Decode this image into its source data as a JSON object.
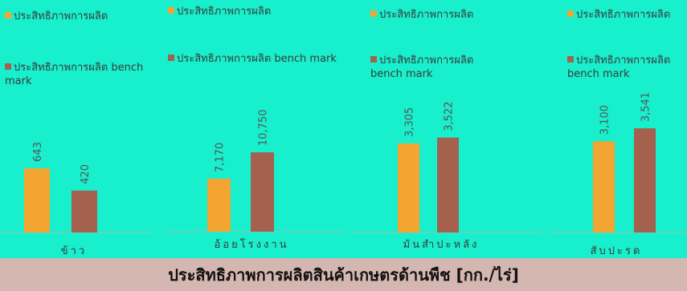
{
  "colors": {
    "background": "#18efcc",
    "footer": "#d5b7b1",
    "production": "#f2a530",
    "benchmark": "#a4614e",
    "text": "#3a3a3a",
    "value_label": "#555555"
  },
  "footer": {
    "title": "ประสิทธิภาพการผลิตสินค้าเกษตรด้านพืช [กก./ไร่]"
  },
  "chart_data": [
    {
      "type": "bar",
      "categories": [
        "ข้าว"
      ],
      "series": [
        {
          "name": "ประสิทธิภาพการผลิต",
          "values": [
            643
          ]
        },
        {
          "name": "ประสิทธิภาพการผลิต bench mark",
          "values": [
            420
          ]
        }
      ],
      "value_labels": [
        "643",
        "420"
      ],
      "legend_position": "top"
    },
    {
      "type": "bar",
      "categories": [
        "อ้อยโรงงาน"
      ],
      "series": [
        {
          "name": "ประสิทธิภาพการผลิต",
          "values": [
            7170
          ]
        },
        {
          "name": "ประสิทธิภาพการผลิต bench mark",
          "values": [
            10750
          ]
        }
      ],
      "value_labels": [
        "7,170",
        "10,750"
      ],
      "legend_position": "top"
    },
    {
      "type": "bar",
      "categories": [
        "มันสำปะหลัง"
      ],
      "series": [
        {
          "name": "ประสิทธิภาพการผลิต",
          "values": [
            3305
          ]
        },
        {
          "name": "ประสิทธิภาพการผลิต bench mark",
          "values": [
            3522
          ]
        }
      ],
      "value_labels": [
        "3,305",
        "3,522"
      ],
      "legend_position": "top"
    },
    {
      "type": "bar",
      "categories": [
        "สับปะรด"
      ],
      "series": [
        {
          "name": "ประสิทธิภาพการผลิต",
          "values": [
            3100
          ]
        },
        {
          "name": "ประสิทธิภาพการผลิต bench mark",
          "values": [
            3541
          ]
        }
      ],
      "value_labels": [
        "3,100",
        "3,541"
      ],
      "legend_position": "top"
    }
  ]
}
